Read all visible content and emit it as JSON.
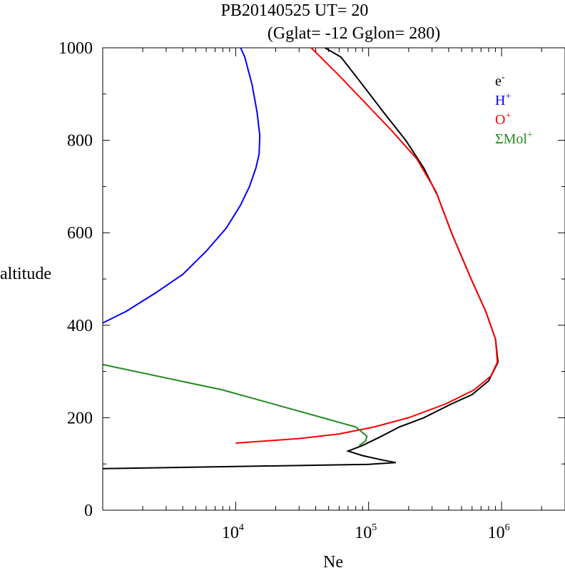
{
  "chart_data": {
    "type": "line",
    "title": "PB20140525   UT=  20",
    "subtitle": "(Gglat= -12   Gglon=  280)",
    "xlabel": "Ne",
    "ylabel": "altitude",
    "xscale": "log",
    "xlim": [
      1000,
      3000000
    ],
    "ylim": [
      0,
      1000
    ],
    "x_ticks": [
      {
        "value": 10000,
        "base": "10",
        "exp": "4"
      },
      {
        "value": 100000,
        "base": "10",
        "exp": "5"
      },
      {
        "value": 1000000,
        "base": "10",
        "exp": "6"
      }
    ],
    "y_ticks": [
      0,
      200,
      400,
      600,
      800,
      1000
    ],
    "grid": false,
    "legend_position": "top-right",
    "series": [
      {
        "name": "e",
        "sup": "-",
        "color": "#000000",
        "points": [
          [
            1000,
            90
          ],
          [
            100000,
            99
          ],
          [
            160000,
            103
          ],
          [
            120000,
            110
          ],
          [
            90000,
            118
          ],
          [
            70000,
            128
          ],
          [
            90000,
            140
          ],
          [
            125000,
            160
          ],
          [
            170000,
            180
          ],
          [
            260000,
            200
          ],
          [
            420000,
            230
          ],
          [
            600000,
            250
          ],
          [
            800000,
            280
          ],
          [
            940000,
            320
          ],
          [
            900000,
            370
          ],
          [
            760000,
            430
          ],
          [
            590000,
            500
          ],
          [
            420000,
            600
          ],
          [
            330000,
            680
          ],
          [
            260000,
            740
          ],
          [
            190000,
            800
          ],
          [
            130000,
            860
          ],
          [
            90000,
            920
          ],
          [
            62000,
            980
          ],
          [
            47000,
            1000
          ]
        ]
      },
      {
        "name": "H",
        "sup": "+",
        "color": "#0000ff",
        "points": [
          [
            1000,
            405
          ],
          [
            1500,
            430
          ],
          [
            2500,
            470
          ],
          [
            4000,
            510
          ],
          [
            6000,
            560
          ],
          [
            8500,
            610
          ],
          [
            10900,
            660
          ],
          [
            12700,
            700
          ],
          [
            14200,
            740
          ],
          [
            15000,
            770
          ],
          [
            15200,
            810
          ],
          [
            14500,
            860
          ],
          [
            13300,
            920
          ],
          [
            11700,
            980
          ],
          [
            10900,
            1000
          ]
        ]
      },
      {
        "name": "O",
        "sup": "+",
        "color": "#ff0000",
        "points": [
          [
            10000,
            145
          ],
          [
            30000,
            155
          ],
          [
            60000,
            165
          ],
          [
            110000,
            180
          ],
          [
            200000,
            200
          ],
          [
            380000,
            230
          ],
          [
            620000,
            260
          ],
          [
            830000,
            290
          ],
          [
            930000,
            320
          ],
          [
            900000,
            370
          ],
          [
            760000,
            430
          ],
          [
            590000,
            500
          ],
          [
            420000,
            600
          ],
          [
            320000,
            690
          ],
          [
            230000,
            760
          ],
          [
            150000,
            820
          ],
          [
            95000,
            880
          ],
          [
            60000,
            940
          ],
          [
            37000,
            1000
          ]
        ]
      },
      {
        "name": "ΣMol",
        "sup": "+",
        "color": "#228b22",
        "points": [
          [
            1000,
            315
          ],
          [
            8000,
            260
          ],
          [
            45000,
            200
          ],
          [
            80000,
            180
          ],
          [
            97000,
            160
          ],
          [
            95000,
            150
          ],
          [
            85000,
            140
          ]
        ]
      }
    ]
  }
}
